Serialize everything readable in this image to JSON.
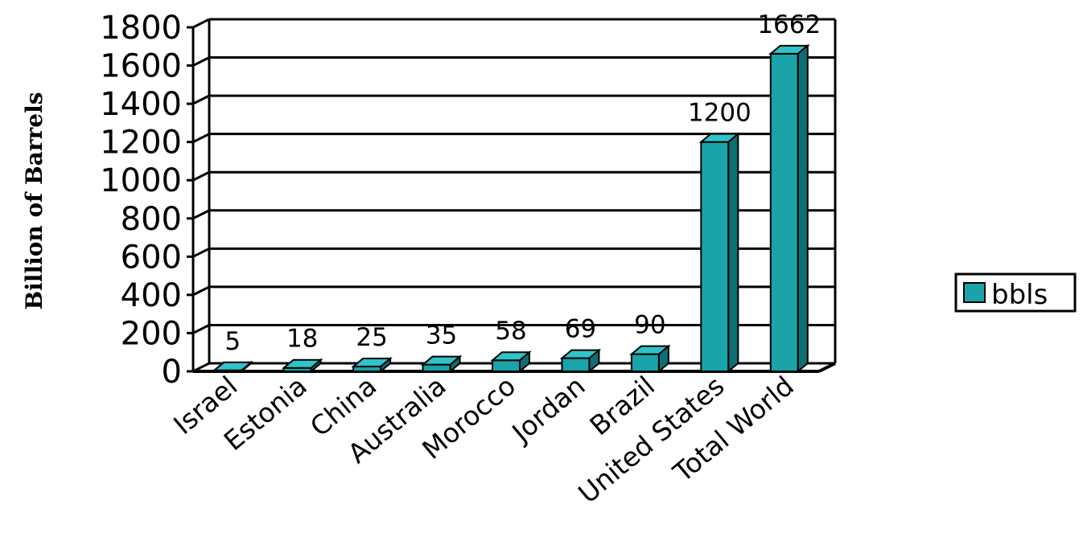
{
  "chart_data": {
    "type": "bar",
    "title": "",
    "xlabel": "",
    "ylabel": "Billion of Barrels",
    "ylim": [
      0,
      1800
    ],
    "yticks": [
      0,
      200,
      400,
      600,
      800,
      1000,
      1200,
      1400,
      1600,
      1800
    ],
    "categories": [
      "Israel",
      "Estonia",
      "China",
      "Australia",
      "Morocco",
      "Jordan",
      "Brazil",
      "United States",
      "Total World"
    ],
    "series": [
      {
        "name": "bbls",
        "values": [
          5,
          18,
          25,
          35,
          58,
          69,
          90,
          1200,
          1662
        ],
        "data_labels": [
          "5",
          "18",
          "25",
          "35",
          "58",
          "69",
          "90",
          "1200",
          "1662"
        ]
      }
    ],
    "grid": true,
    "legend": "right",
    "colors": {
      "bar_front": "#1aa3a8",
      "bar_side": "#0d6f73",
      "bar_top": "#2ec4c9",
      "gridline": "#000000"
    }
  }
}
